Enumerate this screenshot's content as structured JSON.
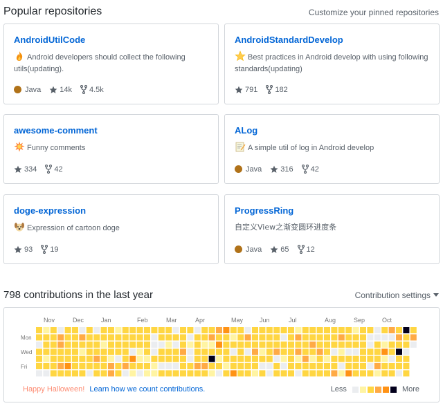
{
  "pinned": {
    "title": "Popular repositories",
    "customize_label": "Customize your pinned repositories",
    "repos": [
      {
        "name": "AndroidUtilCode",
        "emoji": "fire-emoji",
        "description": "Android developers should collect the following utils(updating).",
        "language": "Java",
        "language_color": "#b07219",
        "stars": "14k",
        "forks": "4.5k"
      },
      {
        "name": "AndroidStandardDevelop",
        "emoji": "star-emoji",
        "description": "Best practices in Android develop with using following standards(updating)",
        "language": "",
        "language_color": "",
        "stars": "791",
        "forks": "182"
      },
      {
        "name": "awesome-comment",
        "emoji": "collision-emoji",
        "description": "Funny comments",
        "language": "",
        "language_color": "",
        "stars": "334",
        "forks": "42"
      },
      {
        "name": "ALog",
        "emoji": "memo-emoji",
        "description": "A simple util of log in Android develop",
        "language": "Java",
        "language_color": "#b07219",
        "stars": "316",
        "forks": "42"
      },
      {
        "name": "doge-expression",
        "emoji": "dog-face-emoji",
        "description": "Expression of cartoon doge",
        "language": "",
        "language_color": "",
        "stars": "93",
        "forks": "19"
      },
      {
        "name": "ProgressRing",
        "emoji": "",
        "description": "自定义View之渐变圆环进度条",
        "language": "Java",
        "language_color": "#b07219",
        "stars": "65",
        "forks": "12"
      }
    ]
  },
  "contributions": {
    "title": "798 contributions in the last year",
    "settings_label": "Contribution settings",
    "months": [
      "Nov",
      "Dec",
      "Jan",
      "Feb",
      "Mar",
      "Apr",
      "May",
      "Jun",
      "Jul",
      "Aug",
      "Sep",
      "Oct"
    ],
    "days": [
      "Mon",
      "Wed",
      "Fri"
    ],
    "halloween_label": "Happy Halloween!",
    "learn_label": "Learn how we count contributions.",
    "less_label": "Less",
    "more_label": "More",
    "legend_colors": [
      "#ebedf0",
      "#fff4a3",
      "#ffd642",
      "#ffaa45",
      "#ff9215",
      "#03001c"
    ]
  },
  "colors": {
    "link": "#0366d6",
    "halloween": "#fd8c73",
    "muted": "#586069"
  }
}
